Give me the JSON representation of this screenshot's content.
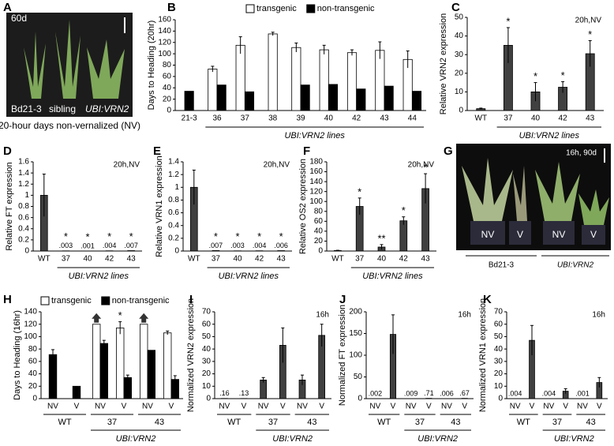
{
  "photos": [
    {
      "panel": "A",
      "labels": [
        "60d",
        "Bd21-3",
        "sibling",
        "UBI:VRN2"
      ],
      "caption": "20-hour days non-vernalized (NV)"
    },
    {
      "panel": "G",
      "labels": [
        "16h, 90d",
        "NV",
        "V",
        "NV",
        "V"
      ],
      "groups": [
        "Bd21-3",
        "UBI:VRN2"
      ]
    }
  ],
  "chart_data": [
    {
      "panel": "B",
      "type": "bar",
      "ylabel": "Days to Heading (20hr)",
      "categories": [
        "21-3",
        "36",
        "37",
        "38",
        "39",
        "40",
        "42",
        "43",
        "44"
      ],
      "xlabel": "UBI:VRN2 lines",
      "ylim": [
        0,
        160
      ],
      "yticks": [
        0,
        20,
        40,
        60,
        80,
        100,
        120,
        140,
        160
      ],
      "legend": "top",
      "series": [
        {
          "name": "transgenic",
          "color": "#ffffff",
          "values": [
            null,
            73,
            115,
            135,
            111,
            107,
            102,
            106,
            90
          ],
          "errors": [
            null,
            5,
            15,
            3,
            8,
            8,
            5,
            15,
            15
          ]
        },
        {
          "name": "non-transgenic",
          "color": "#000000",
          "values": [
            34,
            45,
            33,
            null,
            45,
            46,
            38,
            43,
            34
          ]
        }
      ]
    },
    {
      "panel": "C",
      "type": "bar",
      "ylabel": "Relative VRN2 expression",
      "annotation": "20h,NV",
      "categories": [
        "WT",
        "37",
        "40",
        "42",
        "43"
      ],
      "xlabel": "UBI:VRN2 lines",
      "ylim": [
        0,
        50
      ],
      "yticks": [
        0,
        10,
        20,
        30,
        40,
        50
      ],
      "series": [
        {
          "color": "#404040",
          "values": [
            1,
            35,
            10,
            12.5,
            30.5
          ],
          "errors": [
            0.3,
            9.5,
            5,
            3,
            7
          ],
          "stars": [
            null,
            "*",
            "*",
            "*",
            "*"
          ]
        }
      ]
    },
    {
      "panel": "D",
      "type": "bar",
      "ylabel": "Relative FT expression",
      "annotation": "20h,NV",
      "categories": [
        "WT",
        "37",
        "40",
        "42",
        "43"
      ],
      "xlabel": "UBI:VRN2 lines",
      "ylim": [
        0,
        1.6
      ],
      "yticks": [
        0,
        0.2,
        0.4,
        0.6,
        0.8,
        1,
        1.2,
        1.4,
        1.6
      ],
      "series": [
        {
          "color": "#404040",
          "values": [
            1,
            0.003,
            0.001,
            0.004,
            0.007
          ],
          "value_labels": [
            null,
            ".003",
            ".001",
            ".004",
            ".007"
          ],
          "errors": [
            0.38,
            null,
            null,
            null,
            null
          ],
          "stars": [
            null,
            "*",
            "*",
            "*",
            "*"
          ]
        }
      ]
    },
    {
      "panel": "E",
      "type": "bar",
      "ylabel": "Relative VRN1 expression",
      "annotation": "20h,NV",
      "categories": [
        "WT",
        "37",
        "40",
        "42",
        "43"
      ],
      "xlabel": "UBI:VRN2 lines",
      "ylim": [
        0,
        1.4
      ],
      "yticks": [
        0,
        0.2,
        0.4,
        0.6,
        0.8,
        1,
        1.2,
        1.4
      ],
      "series": [
        {
          "color": "#404040",
          "values": [
            1,
            0.007,
            0.003,
            0.004,
            0.006
          ],
          "value_labels": [
            null,
            ".007",
            ".003",
            ".004",
            ".006"
          ],
          "errors": [
            0.27,
            null,
            null,
            null,
            null
          ],
          "stars": [
            null,
            "*",
            "*",
            "*",
            "*"
          ]
        }
      ]
    },
    {
      "panel": "F",
      "type": "bar",
      "ylabel": "Relative OS2 expression",
      "annotation": "20h,NV",
      "categories": [
        "WT",
        "37",
        "40",
        "42",
        "43"
      ],
      "xlabel": "UBI:VRN2 lines",
      "ylim": [
        0,
        180
      ],
      "yticks": [
        0,
        20,
        40,
        60,
        80,
        100,
        120,
        140,
        160,
        180
      ],
      "series": [
        {
          "color": "#404040",
          "values": [
            1,
            90,
            8,
            61,
            126
          ],
          "errors": [
            0.5,
            17,
            5,
            8,
            30
          ],
          "stars": [
            null,
            "*",
            "**",
            "*",
            "*"
          ]
        }
      ]
    },
    {
      "panel": "H",
      "type": "bar",
      "ylabel": "Days to Heading (16hr)",
      "categories": [
        "NV",
        "V",
        "NV",
        "V",
        "NV",
        "V"
      ],
      "groups": [
        "WT",
        "37",
        "43"
      ],
      "xlabel": "UBI:VRN2",
      "ylim": [
        0,
        140
      ],
      "yticks": [
        0,
        20,
        40,
        60,
        80,
        100,
        120,
        140
      ],
      "legend": "top",
      "series": [
        {
          "name": "transgenic",
          "color": "#ffffff",
          "values": [
            null,
            null,
            120,
            114,
            120,
            106
          ],
          "errors": [
            null,
            null,
            null,
            10,
            null,
            3
          ],
          "stars": [
            null,
            null,
            null,
            "*",
            null,
            null
          ]
        },
        {
          "name": "non-transgenic",
          "color": "#000000",
          "values": [
            71,
            20,
            89,
            34,
            78,
            31
          ],
          "errors": [
            8,
            null,
            5,
            4,
            null,
            6
          ]
        }
      ]
    },
    {
      "panel": "I",
      "type": "bar",
      "ylabel": "Normalized VRN2 expression",
      "annotation": "16h",
      "categories": [
        "NV",
        "V",
        "NV",
        "V",
        "NV",
        "V"
      ],
      "groups": [
        "WT",
        "37",
        "43"
      ],
      "xlabel": "UBI:VRN2",
      "ylim": [
        0,
        70
      ],
      "yticks": [
        0,
        10,
        20,
        30,
        40,
        50,
        60,
        70
      ],
      "series": [
        {
          "color": "#404040",
          "values": [
            0.16,
            0.13,
            15,
            43,
            15,
            51
          ],
          "value_labels": [
            ".16",
            ".13",
            null,
            null,
            null,
            null
          ],
          "errors": [
            null,
            null,
            2,
            14,
            4,
            9
          ]
        }
      ]
    },
    {
      "panel": "J",
      "type": "bar",
      "ylabel": "Normalized FT expression",
      "annotation": "16h",
      "categories": [
        "NV",
        "V",
        "NV",
        "V",
        "NV",
        "V"
      ],
      "groups": [
        "WT",
        "37",
        "43"
      ],
      "xlabel": "UBI:VRN2",
      "ylim": [
        0,
        200
      ],
      "yticks": [
        0,
        50,
        100,
        150,
        200
      ],
      "series": [
        {
          "color": "#404040",
          "values": [
            0.002,
            148,
            0.009,
            0.71,
            0.006,
            0.67
          ],
          "value_labels": [
            ".002",
            null,
            ".009",
            ".71",
            ".006",
            ".67"
          ],
          "errors": [
            null,
            45,
            null,
            null,
            null,
            null
          ]
        }
      ]
    },
    {
      "panel": "K",
      "type": "bar",
      "ylabel": "Normalized VRN1 expression",
      "annotation": "16h",
      "categories": [
        "NV",
        "V",
        "NV",
        "V",
        "NV",
        "V"
      ],
      "groups": [
        "WT",
        "37",
        "43"
      ],
      "xlabel": "UBI:VRN2",
      "ylim": [
        0,
        70
      ],
      "yticks": [
        0,
        10,
        20,
        30,
        40,
        50,
        60,
        70
      ],
      "series": [
        {
          "color": "#404040",
          "values": [
            0.004,
            47,
            0.004,
            6,
            0.001,
            13
          ],
          "value_labels": [
            ".004",
            null,
            ".004",
            null,
            ".001",
            null
          ],
          "errors": [
            null,
            12,
            null,
            2,
            null,
            4
          ]
        }
      ]
    }
  ]
}
